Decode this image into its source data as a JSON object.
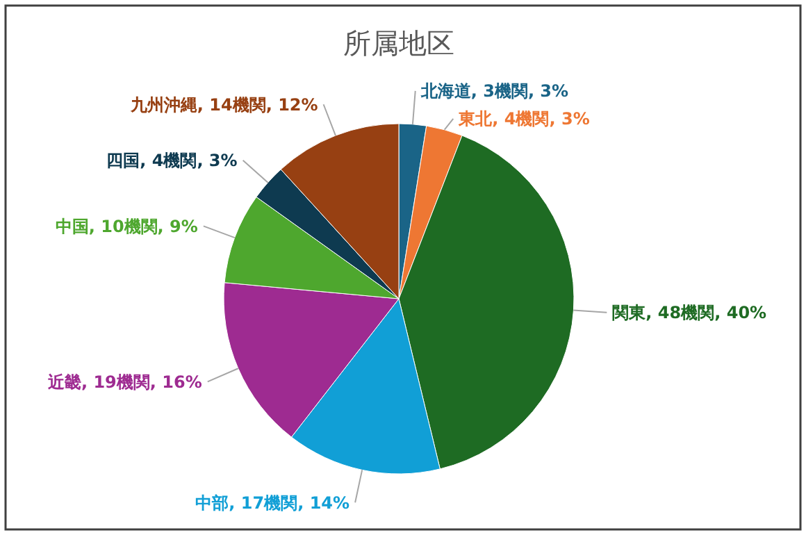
{
  "chart_data": {
    "type": "pie",
    "title": "所属地区",
    "categories": [
      "北海道",
      "東北",
      "関東",
      "中部",
      "近畿",
      "中国",
      "四国",
      "九州沖縄"
    ],
    "values": [
      3,
      4,
      48,
      17,
      19,
      10,
      4,
      14
    ],
    "value_labels": [
      "3機関, 3%",
      "4機関, 3%",
      "48機関, 40%",
      "17機関, 14%",
      "19機関, 16%",
      "10機関, 9%",
      "4機関, 3%",
      "14機関, 12%"
    ],
    "colors": [
      "#1a6487",
      "#ee7733",
      "#1e6b23",
      "#119fd6",
      "#9e2b91",
      "#4ea72e",
      "#0e3a50",
      "#974012"
    ]
  }
}
